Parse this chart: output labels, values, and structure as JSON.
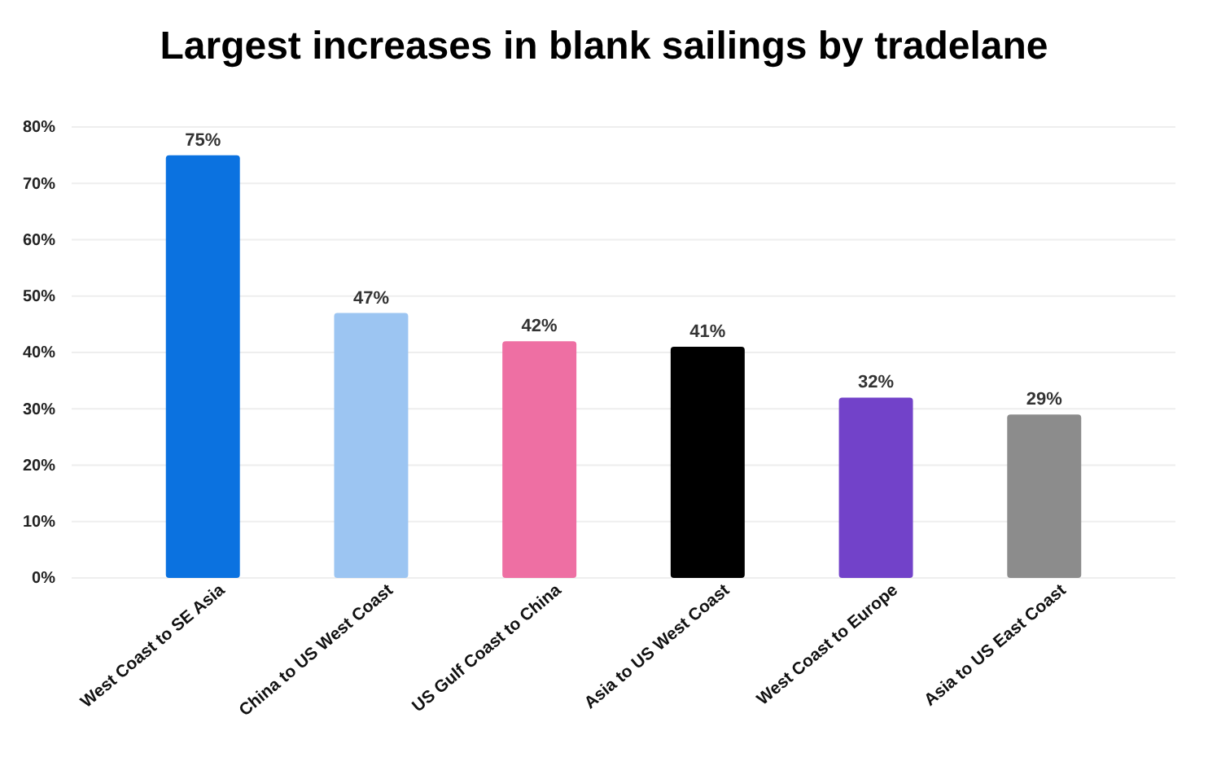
{
  "chart_data": {
    "type": "bar",
    "title": "Largest increases in blank sailings by tradelane",
    "categories": [
      "West Coast to SE Asia",
      "China to US West Coast",
      "US Gulf Coast to China",
      "Asia to US West Coast",
      "West Coast to Europe",
      "Asia to US East Coast"
    ],
    "values": [
      75,
      47,
      42,
      41,
      32,
      29
    ],
    "colors": [
      "#0b72e0",
      "#9cc5f2",
      "#ee6fa3",
      "#000000",
      "#7242c9",
      "#8c8c8c"
    ],
    "ylim": [
      0,
      80
    ],
    "yticks": [
      {
        "value": 0,
        "label": "0%"
      },
      {
        "value": 10,
        "label": "10%"
      },
      {
        "value": 20,
        "label": "20%"
      },
      {
        "value": 30,
        "label": "30%"
      },
      {
        "value": 40,
        "label": "40%"
      },
      {
        "value": 50,
        "label": "50%"
      },
      {
        "value": 60,
        "label": "60%"
      },
      {
        "value": 70,
        "label": "70%"
      },
      {
        "value": 80,
        "label": "80%"
      }
    ],
    "value_labels": [
      "75%",
      "47%",
      "42%",
      "41%",
      "32%",
      "29%"
    ],
    "grid": "y"
  }
}
